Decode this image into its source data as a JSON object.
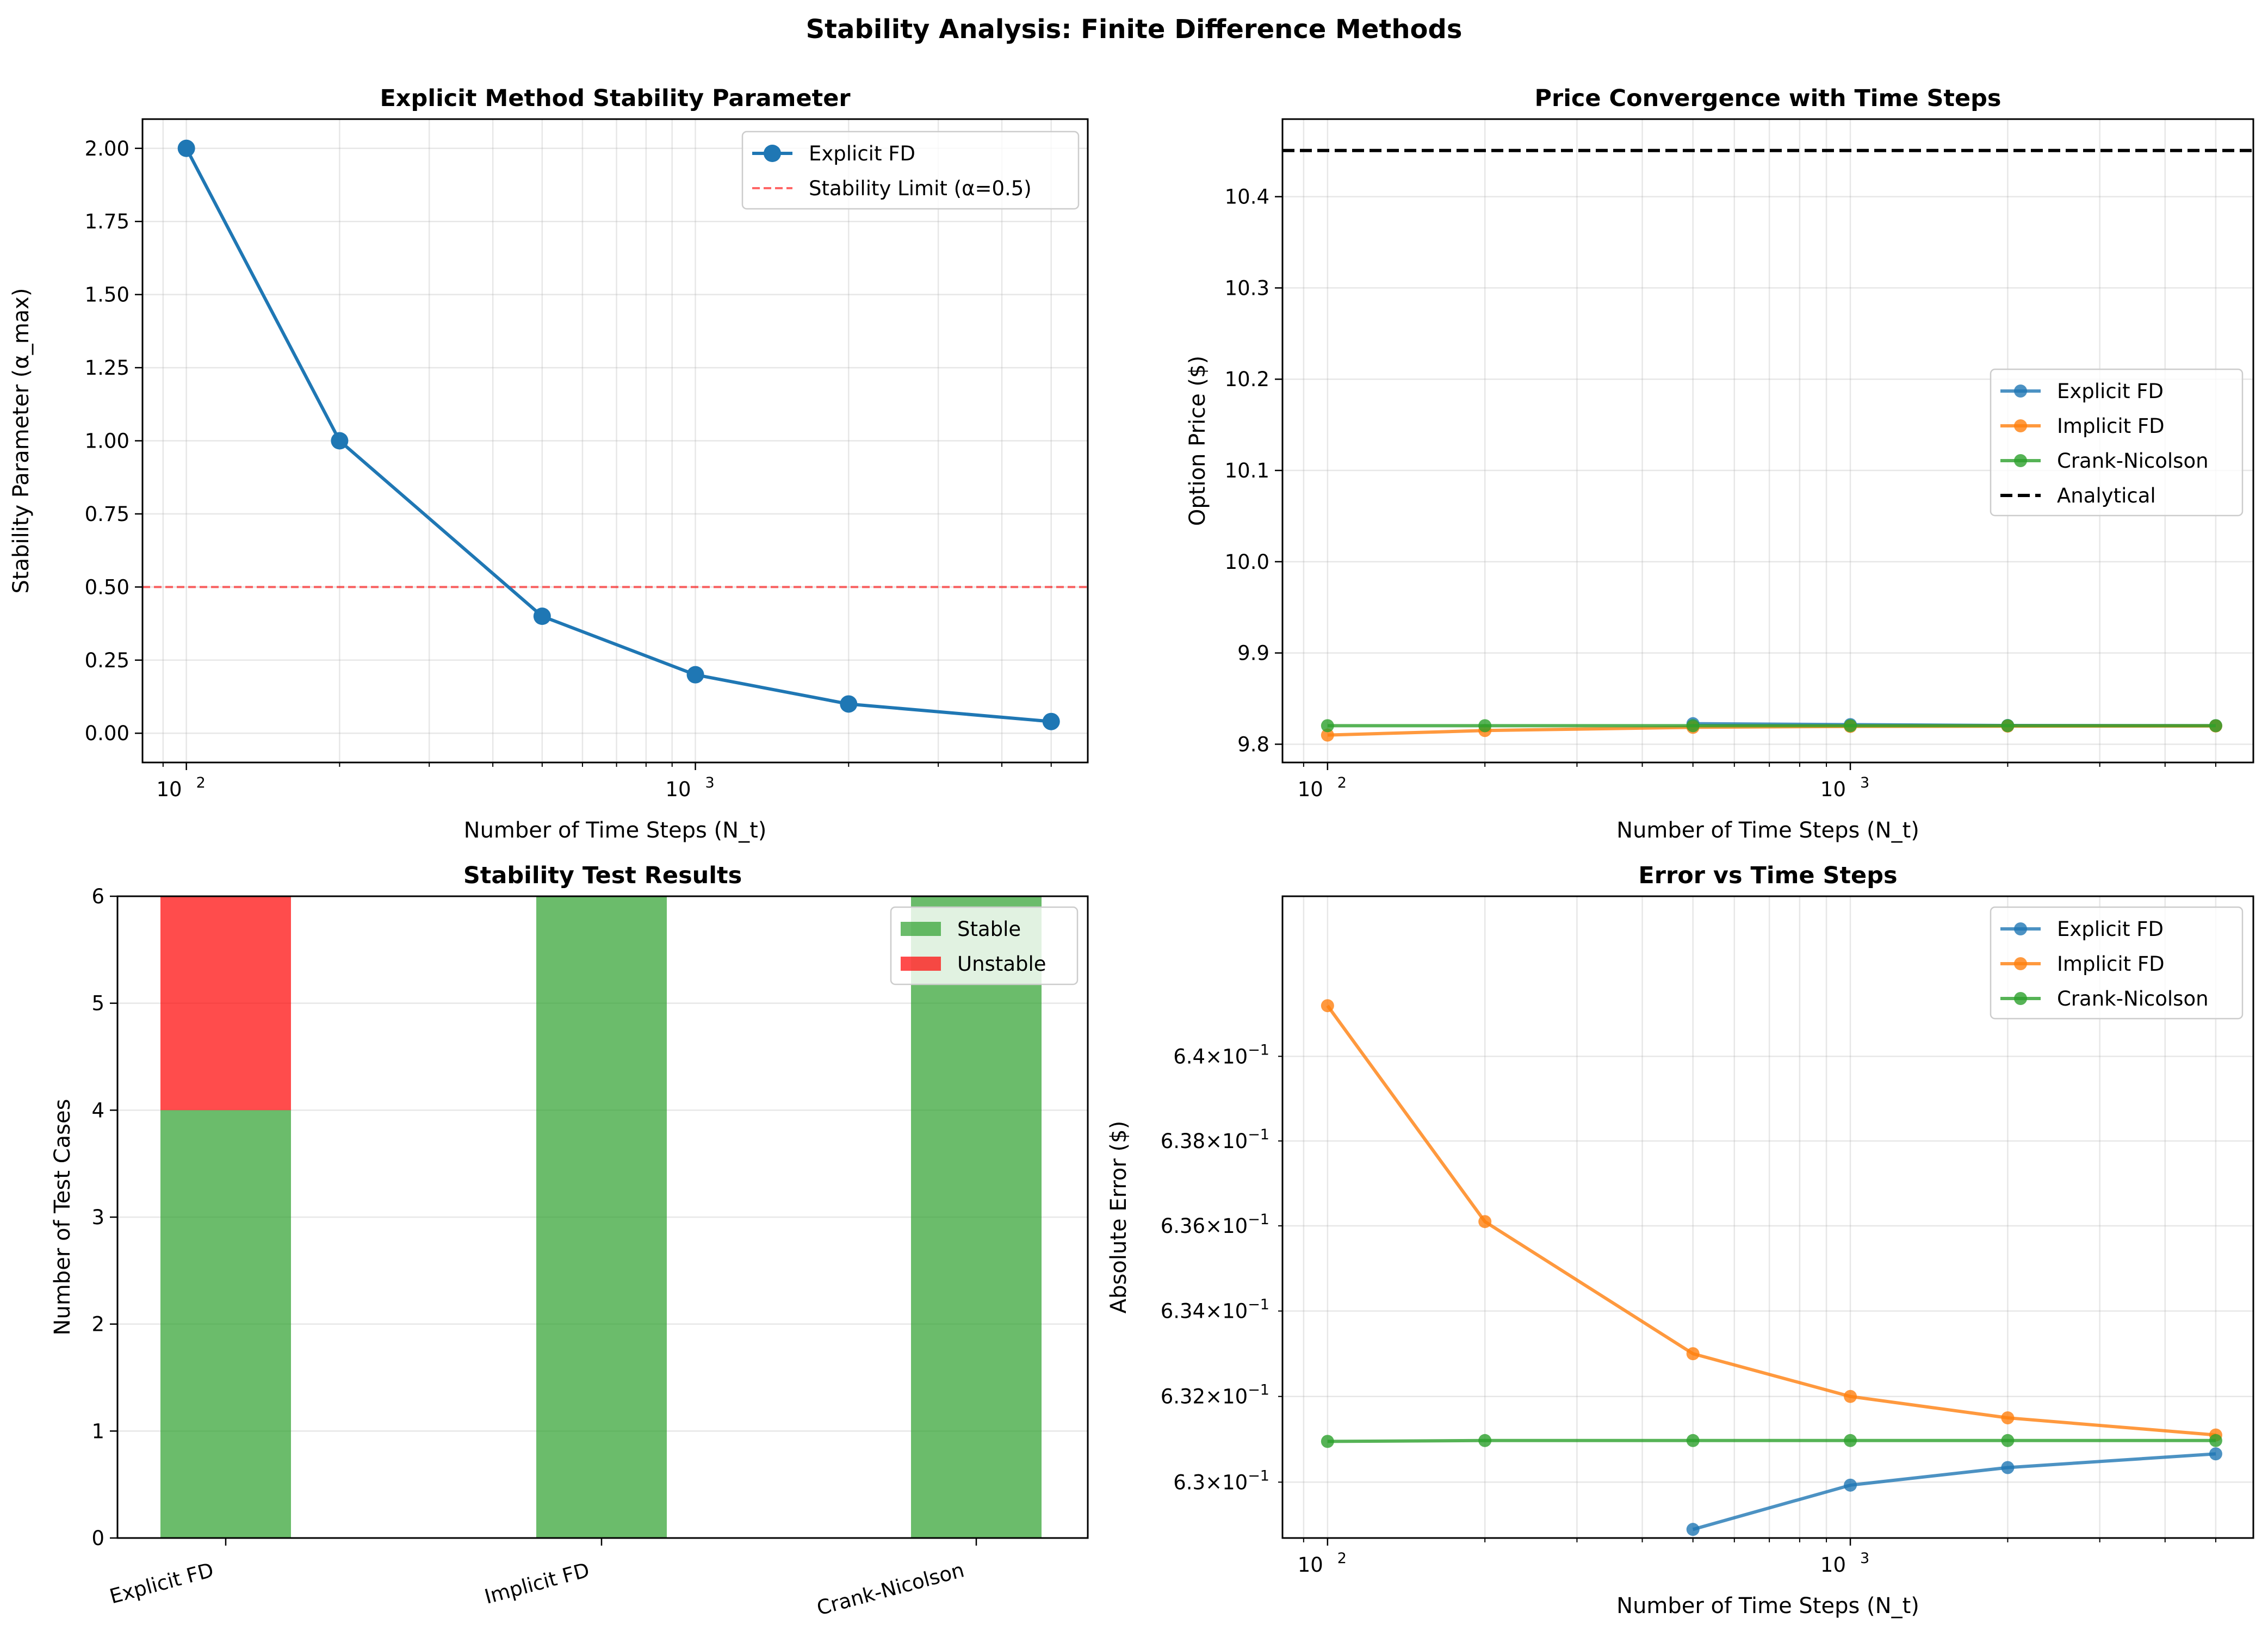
{
  "figure_title": "Stability Analysis: Finite Difference Methods",
  "colors": {
    "blue": "#1f77b4",
    "orange": "#ff7f0e",
    "green": "#2ca02c",
    "red": "#ff0000",
    "stable": "#2ca02c",
    "unstable": "#ff0000",
    "analytical": "#000000"
  },
  "chart_data": [
    {
      "type": "line",
      "title": "Explicit Method Stability Parameter",
      "xlabel": "Number of Time Steps (N_t)",
      "ylabel": "Stability Parameter (α_max)",
      "xscale": "log",
      "xlim": [
        82,
        5900
      ],
      "ylim": [
        -0.1,
        2.1
      ],
      "x_ticks": [
        {
          "value": 100,
          "label": "10²"
        },
        {
          "value": 1000,
          "label": "10³"
        }
      ],
      "y_ticks": [
        "0.00",
        "0.25",
        "0.50",
        "0.75",
        "1.00",
        "1.25",
        "1.50",
        "1.75",
        "2.00"
      ],
      "series": [
        {
          "name": "Explicit FD",
          "x": [
            100,
            200,
            500,
            1000,
            2000,
            5000
          ],
          "y": [
            2.0,
            1.0,
            0.4,
            0.2,
            0.1,
            0.04
          ]
        }
      ],
      "reference_line": {
        "name": "Stability Limit (α=0.5)",
        "y": 0.5
      },
      "grid": true,
      "legend": "top-right"
    },
    {
      "type": "line",
      "title": "Price Convergence with Time Steps",
      "xlabel": "Number of Time Steps (N_t)",
      "ylabel": "Option Price ($)",
      "xscale": "log",
      "xlim": [
        82,
        5900
      ],
      "ylim": [
        9.78,
        10.485
      ],
      "x_ticks": [
        {
          "value": 100,
          "label": "10²"
        },
        {
          "value": 1000,
          "label": "10³"
        }
      ],
      "y_ticks": [
        "9.8",
        "9.9",
        "10.0",
        "10.1",
        "10.2",
        "10.3",
        "10.4"
      ],
      "series": [
        {
          "name": "Explicit FD",
          "x": [
            100,
            200,
            500,
            1000,
            2000,
            5000
          ],
          "y": [
            null,
            null,
            9.8225,
            9.8215,
            9.8205,
            9.8203
          ]
        },
        {
          "name": "Implicit FD",
          "x": [
            100,
            200,
            500,
            1000,
            2000,
            5000
          ],
          "y": [
            9.81,
            9.815,
            9.8185,
            9.8195,
            9.8198,
            9.82
          ]
        },
        {
          "name": "Crank-Nicolson",
          "x": [
            100,
            200,
            500,
            1000,
            2000,
            5000
          ],
          "y": [
            9.8203,
            9.8203,
            9.8203,
            9.8203,
            9.8203,
            9.8203
          ]
        }
      ],
      "reference_line": {
        "name": "Analytical",
        "y": 10.4506
      },
      "grid": true,
      "legend": "center-right"
    },
    {
      "type": "bar",
      "title": "Stability Test Results",
      "ylabel": "Number of Test Cases",
      "categories": [
        "Explicit FD",
        "Implicit FD",
        "Crank-Nicolson"
      ],
      "ylim": [
        0,
        6
      ],
      "y_ticks": [
        "0",
        "1",
        "2",
        "3",
        "4",
        "5",
        "6"
      ],
      "series": [
        {
          "name": "Stable",
          "values": [
            4,
            6,
            6
          ]
        },
        {
          "name": "Unstable",
          "values": [
            2,
            0,
            0
          ]
        }
      ],
      "stacked": true,
      "grid": true,
      "legend": "top-right"
    },
    {
      "type": "line",
      "title": "Error vs Time Steps",
      "xlabel": "Number of Time Steps (N_t)",
      "ylabel": "Absolute Error ($)",
      "xscale": "log",
      "yscale": "log",
      "xlim": [
        82,
        5900
      ],
      "ylim": [
        0.6287,
        0.6438
      ],
      "x_ticks": [
        {
          "value": 100,
          "label": "10²"
        },
        {
          "value": 1000,
          "label": "10³"
        }
      ],
      "y_ticks": [
        {
          "value": 0.63,
          "mantissa": "6.3",
          "exp": "−1"
        },
        {
          "value": 0.632,
          "mantissa": "6.32",
          "exp": "−1"
        },
        {
          "value": 0.634,
          "mantissa": "6.34",
          "exp": "−1"
        },
        {
          "value": 0.636,
          "mantissa": "6.36",
          "exp": "−1"
        },
        {
          "value": 0.638,
          "mantissa": "6.38",
          "exp": "−1"
        },
        {
          "value": 0.64,
          "mantissa": "6.4",
          "exp": "−1"
        }
      ],
      "series": [
        {
          "name": "Explicit FD",
          "x": [
            100,
            200,
            500,
            1000,
            2000,
            5000
          ],
          "y": [
            null,
            null,
            0.6289,
            0.62993,
            0.63034,
            0.63066
          ]
        },
        {
          "name": "Implicit FD",
          "x": [
            100,
            200,
            500,
            1000,
            2000,
            5000
          ],
          "y": [
            0.6412,
            0.6361,
            0.633,
            0.632,
            0.6315,
            0.6311
          ]
        },
        {
          "name": "Crank-Nicolson",
          "x": [
            100,
            200,
            500,
            1000,
            2000,
            5000
          ],
          "y": [
            0.63095,
            0.63097,
            0.63097,
            0.63097,
            0.63097,
            0.63097
          ]
        }
      ],
      "grid": true,
      "legend": "top-right"
    }
  ]
}
